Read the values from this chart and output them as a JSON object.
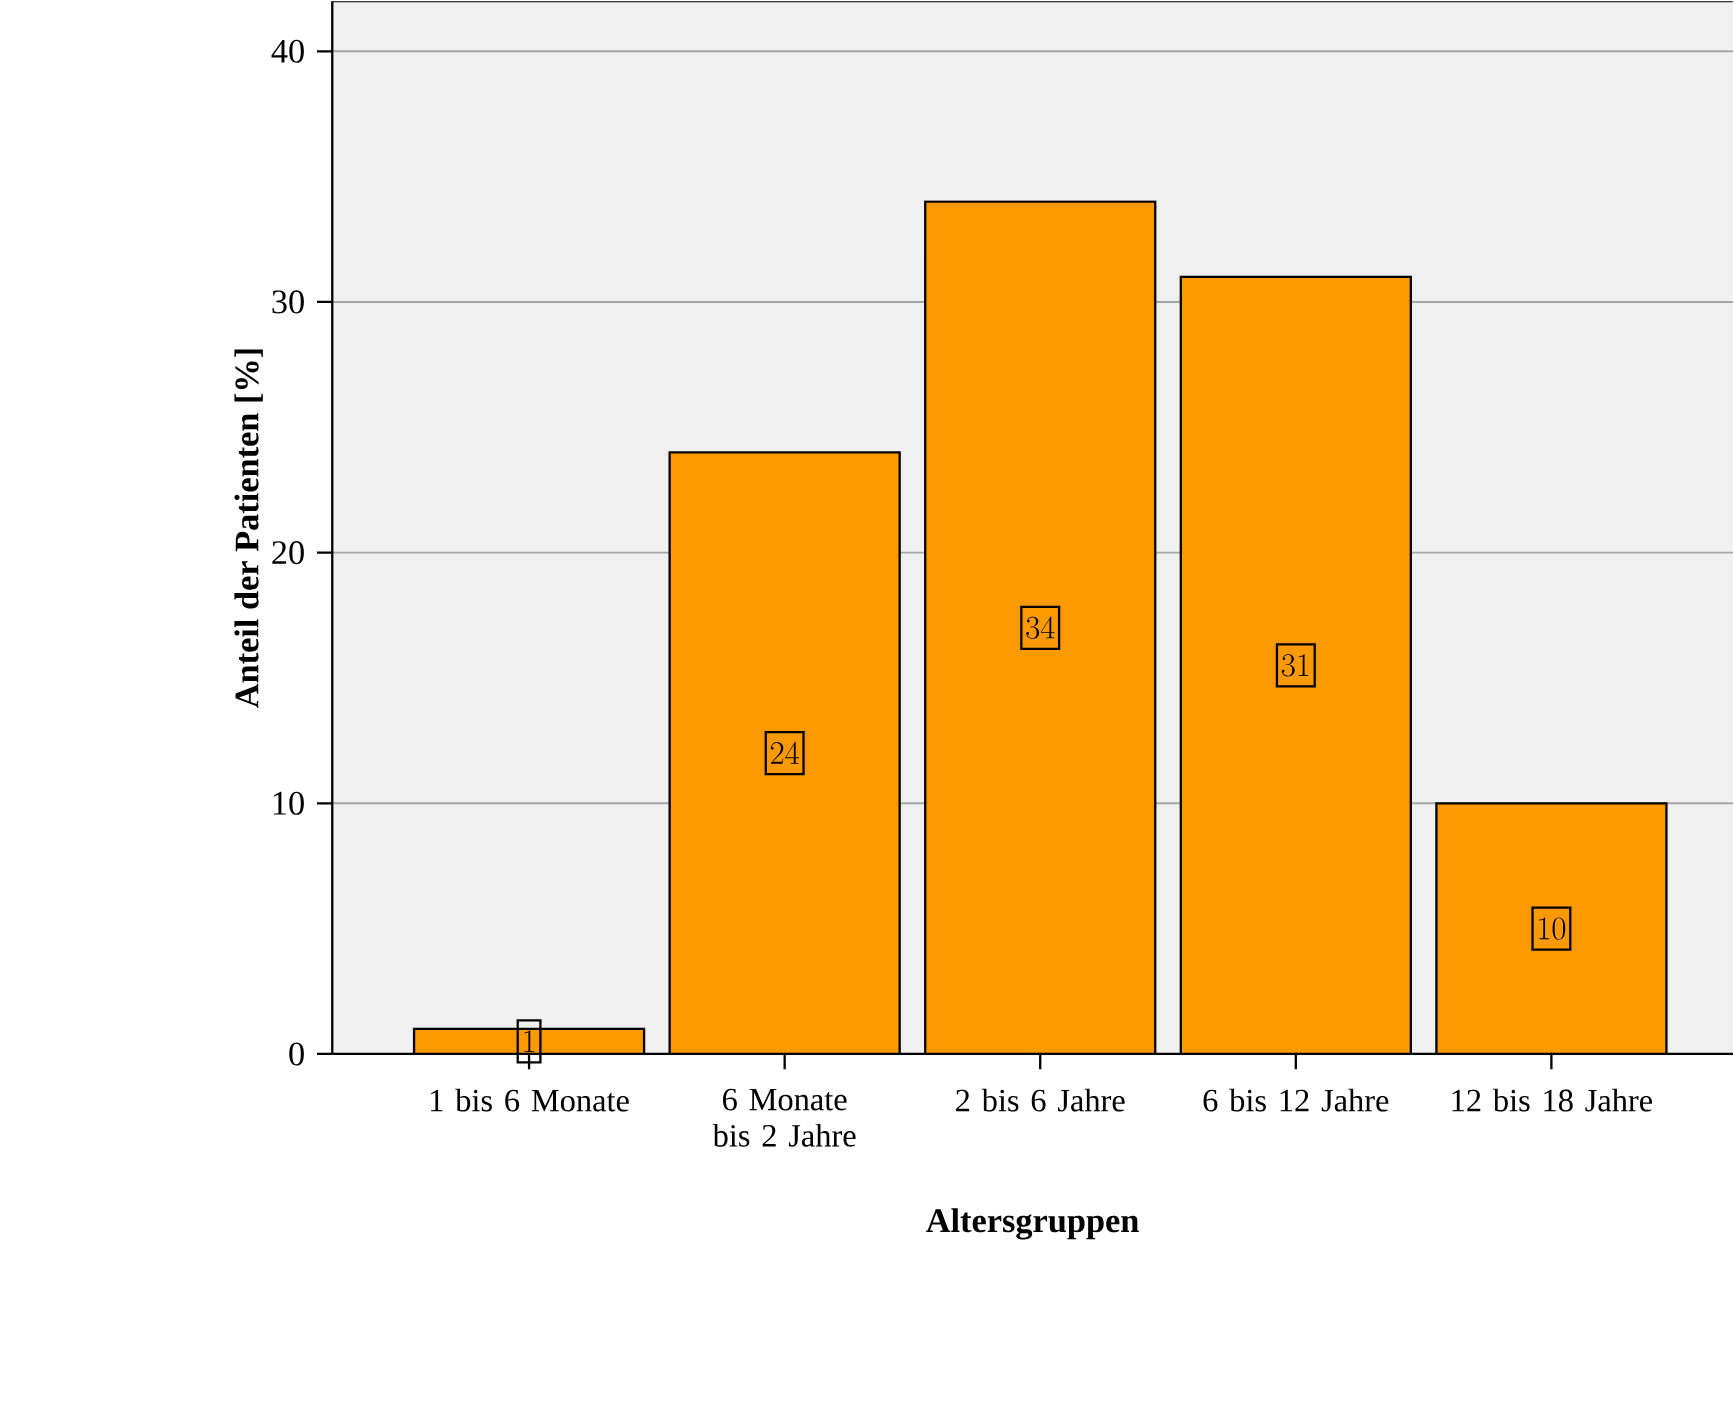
{
  "chart_data": {
    "type": "bar",
    "xlabel": "Altersgruppen",
    "ylabel": "Anteil der Patienten [%]",
    "categories": [
      "1 bis 6 Monate",
      "6 Monate bis 2 Jahre",
      "2 bis 6 Jahre",
      "6 bis 12 Jahre",
      "12 bis 18 Jahre"
    ],
    "values": [
      1,
      24,
      34,
      31,
      10
    ],
    "color": "#fa9900",
    "ylim": [
      0,
      42
    ],
    "yticks": [
      0,
      10,
      20,
      30,
      40
    ],
    "grid": "y",
    "data_labels": true
  }
}
